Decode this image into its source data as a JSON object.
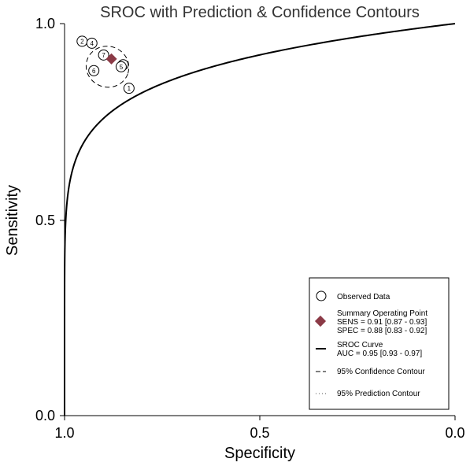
{
  "chart_data": {
    "type": "scatter",
    "title": "SROC with Prediction & Confidence Contours",
    "xlabel": "Specificity",
    "ylabel": "Sensitivity",
    "x_reversed": true,
    "xlim": [
      1.0,
      0.0
    ],
    "ylim": [
      0.0,
      1.0
    ],
    "x_ticks": [
      "1.0",
      "0.5",
      "0.0"
    ],
    "y_ticks": [
      "0.0",
      "0.5",
      "1.0"
    ],
    "observed": [
      {
        "id": "1",
        "spec": 0.835,
        "sens": 0.835
      },
      {
        "id": "2",
        "spec": 0.955,
        "sens": 0.955
      },
      {
        "id": "3",
        "spec": 0.85,
        "sens": 0.895
      },
      {
        "id": "4",
        "spec": 0.93,
        "sens": 0.95
      },
      {
        "id": "5",
        "spec": 0.855,
        "sens": 0.89
      },
      {
        "id": "6",
        "spec": 0.925,
        "sens": 0.88
      },
      {
        "id": "7",
        "spec": 0.9,
        "sens": 0.92
      }
    ],
    "summary_point": {
      "spec": 0.88,
      "sens": 0.91,
      "color": "#8b3a46"
    },
    "confidence_contour": {
      "center_spec": 0.89,
      "center_sens": 0.89,
      "radius_spec": 0.055,
      "radius_sens": 0.052
    },
    "legend": {
      "observed": "Observed Data",
      "summary_title": "Summary Operating Point",
      "sens": "SENS = 0.91 [0.87 - 0.93]",
      "spec": "SPEC = 0.88 [0.83 - 0.92]",
      "sroc_title": "SROC Curve",
      "auc": "AUC = 0.95 [0.93 - 0.97]",
      "confidence": "95% Confidence Contour",
      "prediction": "95% Prediction Contour"
    }
  }
}
